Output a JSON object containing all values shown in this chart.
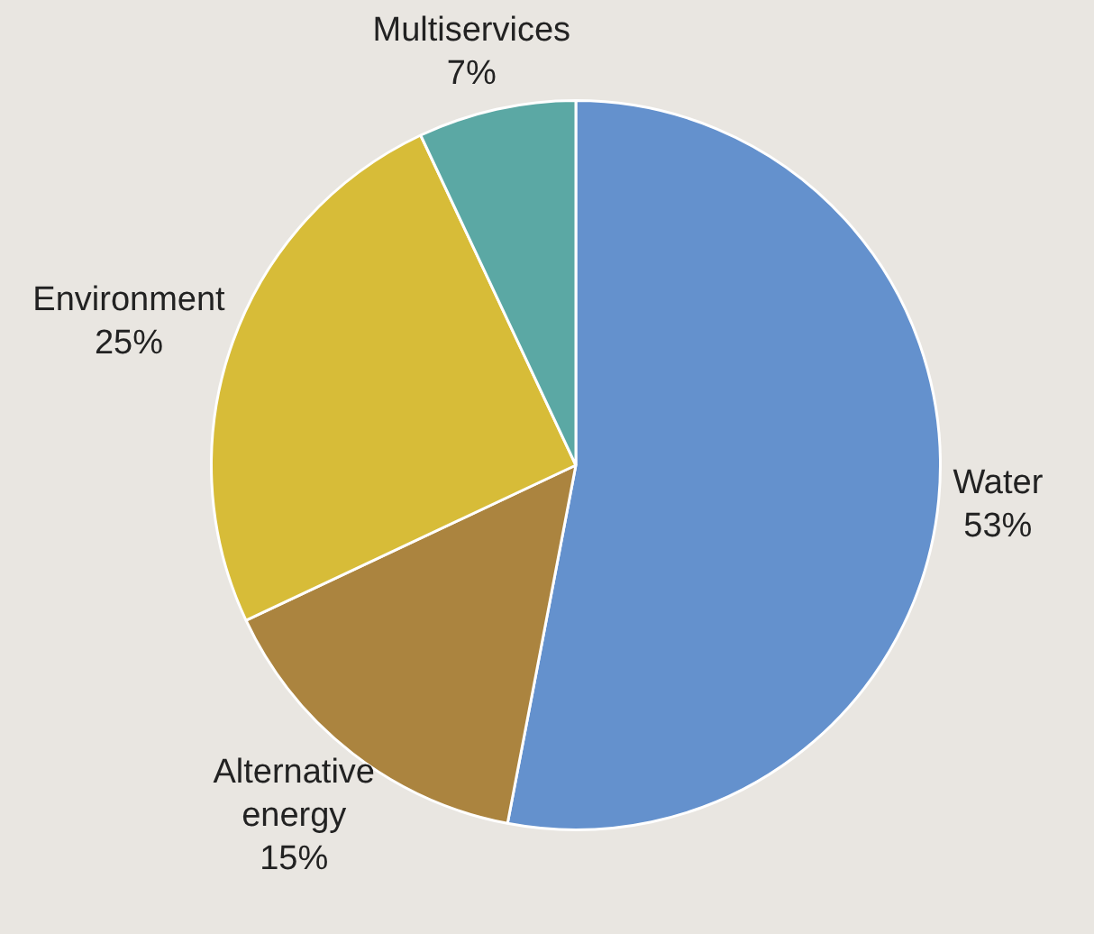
{
  "chart_data": {
    "type": "pie",
    "categories": [
      "Water",
      "Alternative energy",
      "Environment",
      "Multiservices"
    ],
    "values": [
      53,
      15,
      25,
      7
    ],
    "value_labels": [
      "53%",
      "15%",
      "25%",
      "7%"
    ],
    "colors": [
      "#6491cd",
      "#ab843f",
      "#d7bc38",
      "#5ba8a4"
    ],
    "legend": false
  }
}
